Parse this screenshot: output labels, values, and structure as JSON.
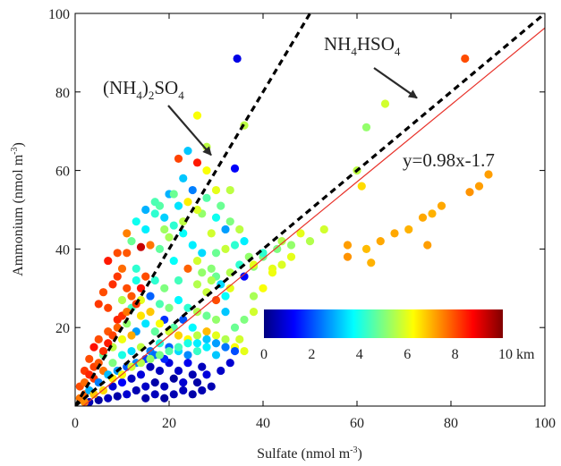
{
  "chart_data": {
    "type": "scatter",
    "xlabel": "Sulfate (nmol m",
    "xlabel_sup": "-3",
    "xlabel_end": ")",
    "ylabel": "Ammonium (nmol m",
    "ylabel_sup": "-3",
    "ylabel_end": ")",
    "xlim": [
      0,
      100
    ],
    "ylim": [
      0,
      100
    ],
    "xticks": [
      0,
      20,
      40,
      60,
      80,
      100
    ],
    "yticks": [
      20,
      40,
      60,
      80,
      100
    ],
    "grid": false,
    "reference_lines": [
      {
        "name": "(NH4)2SO4",
        "slope": 2,
        "intercept": 0,
        "style": "dashed",
        "color": "#000000"
      },
      {
        "name": "NH4HSO4",
        "slope": 1,
        "intercept": 0,
        "style": "dashed",
        "color": "#000000"
      }
    ],
    "fit_line": {
      "slope": 0.98,
      "intercept": -1.7,
      "color": "#e8322a",
      "label": "y=0.98x-1.7"
    },
    "annotations": [
      {
        "parts": [
          "(NH",
          "4",
          ")",
          "2",
          "SO",
          "4"
        ],
        "arrow_to": [
          28,
          63
        ]
      },
      {
        "parts": [
          "NH",
          "4",
          "HSO",
          "4"
        ],
        "arrow_to": [
          72,
          78
        ]
      }
    ],
    "colorbar": {
      "label_ticks": [
        "0",
        "2",
        "4",
        "6",
        "8",
        "10 km"
      ],
      "range_km": [
        0,
        10
      ],
      "colors": [
        "#00007f",
        "#0000ff",
        "#007fff",
        "#00ffff",
        "#7fff7f",
        "#ffff00",
        "#ff7f00",
        "#ff0000",
        "#7f0000"
      ]
    },
    "points": [
      [
        34.5,
        88.5,
        1.0
      ],
      [
        83,
        88.5,
        8.0
      ],
      [
        66,
        77,
        5.8
      ],
      [
        62,
        71,
        5.2
      ],
      [
        60,
        60,
        5.6
      ],
      [
        61,
        56,
        6.6
      ],
      [
        88,
        59,
        7.2
      ],
      [
        86,
        56,
        7.2
      ],
      [
        84,
        54.5,
        7.3
      ],
      [
        78,
        51,
        7.1
      ],
      [
        76,
        49,
        7.0
      ],
      [
        74,
        48,
        7.1
      ],
      [
        71,
        45,
        7.0
      ],
      [
        68,
        44,
        7.1
      ],
      [
        65,
        42,
        7.1
      ],
      [
        62,
        40,
        6.9
      ],
      [
        58,
        38,
        7.3
      ],
      [
        75,
        41,
        7.2
      ],
      [
        58,
        41,
        7.2
      ],
      [
        63,
        36.5,
        7.0
      ],
      [
        48,
        44,
        6.0
      ],
      [
        53,
        45,
        5.8
      ],
      [
        50,
        42,
        5.5
      ],
      [
        44,
        42,
        5.5
      ],
      [
        40,
        38,
        5.0
      ],
      [
        38,
        35.5,
        5.1
      ],
      [
        42,
        35,
        6.0
      ],
      [
        22,
        63,
        8.1
      ],
      [
        26,
        62,
        8.5
      ],
      [
        24,
        65,
        3.2
      ],
      [
        34,
        60.5,
        1.2
      ],
      [
        28,
        66,
        5.6
      ],
      [
        26,
        74,
        6.2
      ],
      [
        36,
        71.5,
        5.6
      ],
      [
        30,
        55,
        6.0
      ],
      [
        25,
        55,
        2.5
      ],
      [
        20,
        54,
        3.0
      ],
      [
        21,
        54,
        4.8
      ],
      [
        23,
        47,
        5.6
      ],
      [
        18,
        51,
        4.6
      ],
      [
        17,
        49,
        4.2
      ],
      [
        19,
        45,
        5.3
      ],
      [
        20,
        43,
        5.4
      ],
      [
        15,
        45,
        3.6
      ],
      [
        12,
        42,
        4.8
      ],
      [
        14,
        40.5,
        9.3
      ],
      [
        16,
        41,
        7.6
      ],
      [
        18,
        40,
        4.7
      ],
      [
        9,
        39,
        8.0
      ],
      [
        11,
        39,
        7.9
      ],
      [
        7,
        37,
        8.5
      ],
      [
        10,
        35,
        7.7
      ],
      [
        13,
        35,
        4.2
      ],
      [
        26,
        37,
        5.8
      ],
      [
        30,
        39,
        4.8
      ],
      [
        32,
        40,
        5.7
      ],
      [
        34,
        41,
        4.2
      ],
      [
        36,
        42,
        3.6
      ],
      [
        29,
        44,
        5.8
      ],
      [
        33,
        47,
        5.0
      ],
      [
        35,
        45,
        5.6
      ],
      [
        27,
        49,
        5.2
      ],
      [
        31,
        51,
        4.8
      ],
      [
        33,
        55,
        5.6
      ],
      [
        28,
        60,
        6.2
      ],
      [
        23,
        58,
        3.2
      ],
      [
        21,
        37,
        3.8
      ],
      [
        24,
        35,
        7.8
      ],
      [
        27,
        34,
        5.2
      ],
      [
        30,
        33,
        4.8
      ],
      [
        36,
        33,
        1.3
      ],
      [
        33,
        30,
        6.0
      ],
      [
        38,
        36,
        6.0
      ],
      [
        40,
        39,
        4.2
      ],
      [
        43,
        40,
        5.0
      ],
      [
        46,
        41,
        5.2
      ],
      [
        26,
        31,
        5.5
      ],
      [
        22,
        32,
        4.4
      ],
      [
        28,
        29,
        5.7
      ],
      [
        30,
        27,
        8.0
      ],
      [
        32,
        28,
        3.8
      ],
      [
        19,
        30,
        5.0
      ],
      [
        17,
        32,
        4.2
      ],
      [
        15,
        33,
        8.0
      ],
      [
        13,
        32,
        4.0
      ],
      [
        11,
        30,
        8.0
      ],
      [
        9,
        33,
        8.2
      ],
      [
        8,
        31,
        8.3
      ],
      [
        6,
        29,
        8.0
      ],
      [
        5,
        26,
        8.2
      ],
      [
        7,
        25,
        8.1
      ],
      [
        10,
        27,
        5.5
      ],
      [
        12,
        25,
        4.4
      ],
      [
        14,
        27,
        6.0
      ],
      [
        16,
        28,
        2.2
      ],
      [
        18,
        26,
        4.5
      ],
      [
        20,
        25,
        5.0
      ],
      [
        22,
        27,
        3.7
      ],
      [
        24,
        25,
        4.2
      ],
      [
        26,
        24,
        5.5
      ],
      [
        28,
        23,
        4.8
      ],
      [
        30,
        22,
        5.2
      ],
      [
        32,
        24,
        3.2
      ],
      [
        34,
        20,
        4.8
      ],
      [
        36,
        22,
        5.0
      ],
      [
        38,
        24,
        5.8
      ],
      [
        35,
        17,
        5.8
      ],
      [
        25,
        20,
        3.7
      ],
      [
        23,
        22,
        2.1
      ],
      [
        21,
        20,
        4.6
      ],
      [
        19,
        22,
        1.7
      ],
      [
        17,
        19,
        4.7
      ],
      [
        15,
        21,
        3.5
      ],
      [
        13,
        19,
        2.8
      ],
      [
        11,
        21,
        5.2
      ],
      [
        9,
        22,
        8.4
      ],
      [
        7,
        19,
        7.9
      ],
      [
        5,
        17,
        8.0
      ],
      [
        4,
        15,
        8.6
      ],
      [
        3,
        12,
        8.0
      ],
      [
        2,
        9,
        8.2
      ],
      [
        1,
        5,
        8.0
      ],
      [
        2,
        3,
        7.8
      ],
      [
        4,
        7,
        8.2
      ],
      [
        6,
        9,
        7.6
      ],
      [
        8,
        11,
        5.0
      ],
      [
        10,
        13,
        4.0
      ],
      [
        12,
        14,
        3.4
      ],
      [
        14,
        15,
        5.6
      ],
      [
        16,
        14,
        2.5
      ],
      [
        18,
        16,
        4.1
      ],
      [
        20,
        15,
        2.2
      ],
      [
        22,
        14,
        3.4
      ],
      [
        24,
        13,
        2.6
      ],
      [
        26,
        14,
        4.3
      ],
      [
        28,
        15,
        3.6
      ],
      [
        30,
        13,
        3.2
      ],
      [
        27,
        10,
        0.6
      ],
      [
        25,
        8,
        0.5
      ],
      [
        23,
        6,
        0.8
      ],
      [
        21,
        7,
        0.3
      ],
      [
        19,
        5,
        0.6
      ],
      [
        17,
        6,
        0.4
      ],
      [
        15,
        5,
        0.7
      ],
      [
        13,
        4,
        0.5
      ],
      [
        11,
        3,
        0.8
      ],
      [
        9,
        2.5,
        0.4
      ],
      [
        7,
        2,
        0.6
      ],
      [
        5,
        1.5,
        0.3
      ],
      [
        3,
        1,
        0.5
      ],
      [
        18,
        9,
        0.6
      ],
      [
        20,
        11,
        0.9
      ],
      [
        22,
        9,
        0.7
      ],
      [
        24,
        11,
        1.1
      ],
      [
        16,
        10,
        0.5
      ],
      [
        14,
        8,
        0.9
      ],
      [
        12,
        7,
        0.6
      ],
      [
        10,
        6,
        1.2
      ],
      [
        8,
        5,
        0.8
      ],
      [
        26,
        6,
        0.4
      ],
      [
        28,
        8,
        0.9
      ],
      [
        29,
        5,
        0.5
      ],
      [
        19,
        12,
        1.6
      ],
      [
        17,
        13,
        2.3
      ],
      [
        15,
        12,
        1.8
      ],
      [
        13,
        11,
        2.6
      ],
      [
        11,
        10,
        2.1
      ],
      [
        9,
        9,
        2.8
      ],
      [
        7,
        8,
        3.1
      ],
      [
        5,
        6,
        2.5
      ],
      [
        3,
        4,
        3.0
      ],
      [
        6,
        13,
        4.8
      ],
      [
        8,
        15,
        5.6
      ],
      [
        10,
        17,
        6.1
      ],
      [
        12,
        18,
        7.1
      ],
      [
        14,
        23,
        6.5
      ],
      [
        16,
        24,
        6.8
      ],
      [
        18,
        21,
        6.2
      ],
      [
        20,
        19,
        5.8
      ],
      [
        22,
        18,
        6.7
      ],
      [
        24,
        17,
        6.3
      ],
      [
        26,
        18,
        5.6
      ],
      [
        28,
        19,
        6.9
      ],
      [
        30,
        18,
        6.0
      ],
      [
        32,
        17,
        5.5
      ],
      [
        34,
        15,
        6.2
      ],
      [
        36,
        14,
        6.0
      ],
      [
        38,
        28,
        5.4
      ],
      [
        40,
        30,
        6.2
      ],
      [
        42,
        34,
        6.1
      ],
      [
        44,
        36,
        5.9
      ],
      [
        46,
        38,
        6.0
      ],
      [
        29,
        35,
        5.1
      ],
      [
        27,
        39,
        3.4
      ],
      [
        25,
        41,
        3.6
      ],
      [
        23,
        44,
        3.8
      ],
      [
        21,
        46,
        4.2
      ],
      [
        19,
        48,
        3.3
      ],
      [
        17,
        52,
        4.5
      ],
      [
        15,
        50,
        3.0
      ],
      [
        13,
        47,
        3.9
      ],
      [
        11,
        44,
        7.5
      ],
      [
        22,
        51,
        3.5
      ],
      [
        24,
        52,
        6.4
      ],
      [
        26,
        50,
        5.9
      ],
      [
        28,
        53,
        4.6
      ],
      [
        30,
        48,
        3.9
      ],
      [
        32,
        45,
        2.8
      ],
      [
        31,
        31,
        3.4
      ],
      [
        29,
        32,
        5.5
      ],
      [
        33,
        34,
        5.5
      ],
      [
        35,
        36,
        4.2
      ],
      [
        37,
        38,
        5.2
      ],
      [
        2,
        6,
        7.7
      ],
      [
        3,
        8,
        8.4
      ],
      [
        4,
        10,
        8.1
      ],
      [
        5,
        11,
        7.9
      ],
      [
        6,
        14,
        8.3
      ],
      [
        7,
        16,
        8.5
      ],
      [
        8,
        18,
        8.1
      ],
      [
        9,
        20,
        7.8
      ],
      [
        10,
        23,
        8.3
      ],
      [
        11,
        24,
        7.6
      ],
      [
        12,
        28,
        7.9
      ],
      [
        13,
        26,
        8.2
      ],
      [
        14,
        30,
        8.6
      ],
      [
        1,
        2,
        7.6
      ],
      [
        2,
        1,
        7.4
      ],
      [
        4,
        3,
        6.8
      ],
      [
        6,
        4,
        6.6
      ],
      [
        8,
        7,
        6.4
      ],
      [
        10,
        8,
        6.2
      ],
      [
        12,
        10,
        5.8
      ],
      [
        14,
        11,
        5.5
      ],
      [
        16,
        12,
        5.2
      ],
      [
        18,
        13,
        4.9
      ],
      [
        20,
        14,
        4.6
      ],
      [
        22,
        15,
        4.4
      ],
      [
        24,
        16,
        4.0
      ],
      [
        26,
        16,
        3.6
      ],
      [
        28,
        17,
        3.2
      ],
      [
        30,
        16,
        2.8
      ],
      [
        32,
        15,
        2.4
      ],
      [
        34,
        14,
        2.0
      ],
      [
        31,
        9,
        0.7
      ],
      [
        33,
        11,
        0.8
      ],
      [
        21,
        3,
        0.5
      ],
      [
        23,
        4,
        0.6
      ],
      [
        25,
        3,
        0.4
      ],
      [
        27,
        4,
        0.5
      ],
      [
        15,
        2,
        0.4
      ],
      [
        17,
        3,
        0.6
      ],
      [
        19,
        2,
        0.3
      ]
    ]
  }
}
